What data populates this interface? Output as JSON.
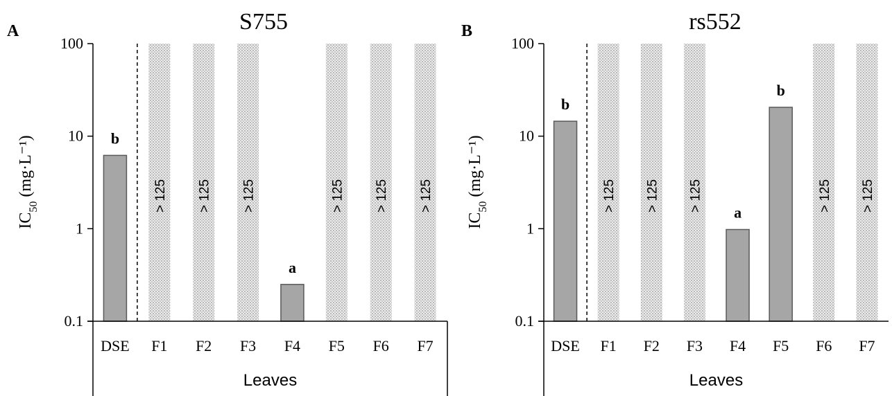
{
  "chart_data": [
    {
      "type": "bar",
      "panel_label": "A",
      "title": "S755",
      "ylabel": "IC",
      "ylabel_sub": "50",
      "ylabel_unit": " (mg·L⁻¹)",
      "xlabel": "Leaves",
      "y_scale": "log",
      "ylim": [
        0.1,
        100
      ],
      "y_ticks": [
        "0.1",
        "1",
        "10",
        "100"
      ],
      "categories": [
        "DSE",
        "F1",
        "F2",
        "F3",
        "F4",
        "F5",
        "F6",
        "F7"
      ],
      "values": [
        6.2,
        null,
        null,
        null,
        0.25,
        null,
        null,
        null
      ],
      "significance": [
        "b",
        "",
        "",
        "",
        "a",
        "",
        "",
        ""
      ],
      "over_range_label": "> 125",
      "over_range": [
        false,
        true,
        true,
        true,
        false,
        true,
        true,
        true
      ],
      "divider_after_index": 0,
      "colors": {
        "bar": "#a6a6a6",
        "bar_edge": "#595959",
        "over_range_fill": "#d9d9d9"
      }
    },
    {
      "type": "bar",
      "panel_label": "B",
      "title": "rs552",
      "ylabel": "IC",
      "ylabel_sub": "50",
      "ylabel_unit": " (mg·L⁻¹)",
      "xlabel": "Leaves",
      "y_scale": "log",
      "ylim": [
        0.1,
        100
      ],
      "y_ticks": [
        "0.1",
        "1",
        "10",
        "100"
      ],
      "categories": [
        "DSE",
        "F1",
        "F2",
        "F3",
        "F4",
        "F5",
        "F6",
        "F7"
      ],
      "values": [
        14.5,
        null,
        null,
        null,
        0.98,
        20.5,
        null,
        null
      ],
      "significance": [
        "b",
        "",
        "",
        "",
        "a",
        "b",
        "",
        ""
      ],
      "over_range_label": "> 125",
      "over_range": [
        false,
        true,
        true,
        true,
        false,
        false,
        true,
        true
      ],
      "divider_after_index": 0,
      "colors": {
        "bar": "#a6a6a6",
        "bar_edge": "#595959",
        "over_range_fill": "#d9d9d9"
      }
    }
  ]
}
